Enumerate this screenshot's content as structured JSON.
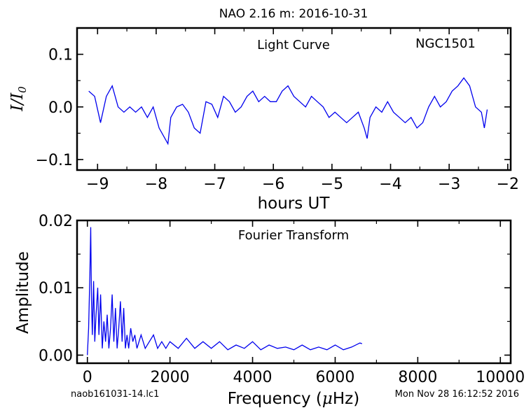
{
  "figure": {
    "title": "NAO 2.16 m:  2016-10-31",
    "footer_left": "naob161031-14.lc1",
    "footer_right": "Mon Nov 28 16:12:52 2016"
  },
  "chart_data": [
    {
      "type": "line",
      "annotation_center": "Light Curve",
      "annotation_right": "NGC1501",
      "xlabel": "hours UT",
      "ylabel_main": "I/I",
      "ylabel_sub": "0",
      "xlim": [
        -9.35,
        -1.95
      ],
      "ylim": [
        -0.12,
        0.15
      ],
      "xticks": [
        -9,
        -8,
        -7,
        -6,
        -5,
        -4,
        -3,
        -2
      ],
      "xtick_labels": [
        "−9",
        "−8",
        "−7",
        "−6",
        "−5",
        "−4",
        "−3",
        "−2"
      ],
      "yticks": [
        -0.1,
        0.0,
        0.1
      ],
      "ytick_labels": [
        "−0.1",
        "0.0",
        "0.1"
      ],
      "line_color": "#0000ee",
      "series": [
        {
          "x": [
            -9.15,
            -9.05,
            -8.95,
            -8.85,
            -8.75,
            -8.65,
            -8.55,
            -8.45,
            -8.35,
            -8.25,
            -8.15,
            -8.05,
            -7.95,
            -7.85,
            -7.8,
            -7.75,
            -7.65,
            -7.55,
            -7.45,
            -7.35,
            -7.25,
            -7.15,
            -7.05,
            -6.95,
            -6.85,
            -6.75,
            -6.65,
            -6.55,
            -6.45,
            -6.35,
            -6.25,
            -6.15,
            -6.05,
            -5.95,
            -5.85,
            -5.75,
            -5.65,
            -5.55,
            -5.45,
            -5.35,
            -5.25,
            -5.15,
            -5.05,
            -4.95,
            -4.85,
            -4.75,
            -4.65,
            -4.55,
            -4.45,
            -4.4,
            -4.35,
            -4.25,
            -4.15,
            -4.05,
            -3.95,
            -3.85,
            -3.75,
            -3.65,
            -3.55,
            -3.45,
            -3.35,
            -3.25,
            -3.15,
            -3.05,
            -2.95,
            -2.85,
            -2.75,
            -2.65,
            -2.55,
            -2.45,
            -2.4,
            -2.35
          ],
          "y": [
            0.03,
            0.02,
            -0.03,
            0.02,
            0.04,
            0.0,
            -0.01,
            0.0,
            -0.01,
            0.0,
            -0.02,
            0.0,
            -0.04,
            -0.06,
            -0.07,
            -0.02,
            0.0,
            0.005,
            -0.01,
            -0.04,
            -0.05,
            0.01,
            0.005,
            -0.02,
            0.02,
            0.01,
            -0.01,
            0.0,
            0.02,
            0.03,
            0.01,
            0.02,
            0.01,
            0.01,
            0.03,
            0.04,
            0.02,
            0.01,
            0.0,
            0.02,
            0.01,
            0.0,
            -0.02,
            -0.01,
            -0.02,
            -0.03,
            -0.02,
            -0.01,
            -0.04,
            -0.06,
            -0.02,
            0.0,
            -0.01,
            0.01,
            -0.01,
            -0.02,
            -0.03,
            -0.02,
            -0.04,
            -0.03,
            0.0,
            0.02,
            0.0,
            0.01,
            0.03,
            0.04,
            0.055,
            0.04,
            0.0,
            -0.01,
            -0.04,
            -0.005
          ]
        }
      ]
    },
    {
      "type": "line",
      "annotation_center": "Fourier Transform",
      "xlabel_main": "Frequency (",
      "xlabel_mu": "μ",
      "xlabel_end": "Hz)",
      "ylabel": "Amplitude",
      "xlim": [
        -250,
        10250
      ],
      "ylim": [
        -0.0012,
        0.02
      ],
      "xticks": [
        0,
        2000,
        4000,
        6000,
        8000,
        10000
      ],
      "xtick_labels": [
        "0",
        "2000",
        "4000",
        "6000",
        "8000",
        "10000"
      ],
      "yticks": [
        0.0,
        0.01,
        0.02
      ],
      "ytick_labels": [
        "0.00",
        "0.01",
        "0.02"
      ],
      "line_color": "#0000ee",
      "series": [
        {
          "x": [
            0,
            30,
            60,
            80,
            100,
            120,
            150,
            180,
            210,
            250,
            280,
            320,
            360,
            400,
            440,
            480,
            520,
            560,
            600,
            640,
            680,
            720,
            760,
            800,
            840,
            880,
            920,
            960,
            1000,
            1050,
            1100,
            1150,
            1200,
            1300,
            1400,
            1500,
            1600,
            1700,
            1800,
            1900,
            2000,
            2200,
            2400,
            2600,
            2800,
            3000,
            3200,
            3400,
            3600,
            3800,
            4000,
            4200,
            4400,
            4600,
            4800,
            5000,
            5200,
            5400,
            5600,
            5800,
            6000,
            6200,
            6400,
            6600,
            6650
          ],
          "y": [
            0.0,
            0.004,
            0.012,
            0.019,
            0.008,
            0.003,
            0.011,
            0.002,
            0.006,
            0.01,
            0.003,
            0.009,
            0.001,
            0.005,
            0.002,
            0.006,
            0.001,
            0.004,
            0.009,
            0.002,
            0.007,
            0.001,
            0.004,
            0.008,
            0.002,
            0.007,
            0.001,
            0.003,
            0.001,
            0.004,
            0.002,
            0.003,
            0.001,
            0.003,
            0.001,
            0.002,
            0.003,
            0.001,
            0.002,
            0.001,
            0.002,
            0.001,
            0.0025,
            0.001,
            0.002,
            0.001,
            0.002,
            0.0008,
            0.0015,
            0.001,
            0.002,
            0.0008,
            0.0015,
            0.001,
            0.0012,
            0.0008,
            0.0015,
            0.0008,
            0.0012,
            0.0008,
            0.0015,
            0.0008,
            0.0012,
            0.0018,
            0.0017
          ]
        }
      ]
    }
  ]
}
